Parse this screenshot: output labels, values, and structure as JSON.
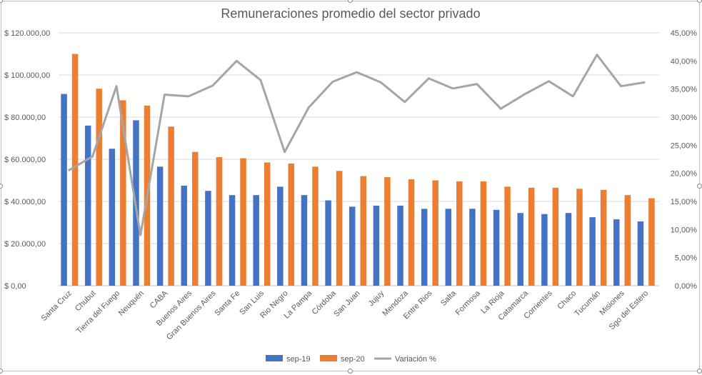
{
  "chart_data": {
    "type": "bar",
    "title": "Remuneraciones promedio del sector privado",
    "categories": [
      "Santa Cruz",
      "Chubut",
      "Tierra del Fuego",
      "Neuquén",
      "CABA",
      "Buenos Aires",
      "Gran Buenos Aires",
      "Santa Fe",
      "San Luis",
      "Rio Negro",
      "La Pampa",
      "Córdoba",
      "San Juan",
      "Jujuy",
      "Mendoza",
      "Entre Rios",
      "Salta",
      "Formosa",
      "La Rioja",
      "Catamarca",
      "Corrientes",
      "Chaco",
      "Tucumán",
      "Misiones",
      "Sgo del Estero"
    ],
    "series": [
      {
        "name": "sep-19",
        "axis": "left",
        "kind": "bar",
        "color": "#4472c4",
        "values": [
          91000,
          76000,
          65000,
          78500,
          56500,
          47500,
          45000,
          43000,
          43000,
          47000,
          43000,
          40500,
          37500,
          38000,
          38000,
          36500,
          36500,
          36500,
          36000,
          34500,
          34000,
          34500,
          32500,
          31500,
          30500
        ]
      },
      {
        "name": "sep-20",
        "axis": "left",
        "kind": "bar",
        "color": "#ed7d31",
        "values": [
          110000,
          93500,
          88000,
          85500,
          75500,
          63500,
          61000,
          60500,
          58500,
          58000,
          56500,
          54500,
          52000,
          51500,
          50500,
          50000,
          49500,
          49500,
          47000,
          46500,
          46500,
          46000,
          45500,
          43000,
          41500
        ]
      },
      {
        "name": "Variación %",
        "axis": "right",
        "kind": "line",
        "color": "#a5a5a5",
        "values": [
          20.5,
          23.0,
          35.5,
          9.0,
          34.0,
          33.7,
          35.6,
          40.0,
          36.6,
          23.8,
          31.7,
          36.3,
          38.0,
          36.2,
          32.7,
          36.9,
          35.1,
          35.9,
          31.5,
          34.1,
          36.4,
          33.7,
          41.1,
          35.5,
          36.2
        ]
      }
    ],
    "y_left": {
      "min": 0,
      "max": 120000,
      "step": 20000,
      "tick_labels": [
        "$ 0,00",
        "$ 20.000,00",
        "$ 40.000,00",
        "$ 60.000,00",
        "$ 80.000,00",
        "$ 100.000,00",
        "$ 120.000,00"
      ]
    },
    "y_right": {
      "min": 0,
      "max": 45,
      "step": 5,
      "tick_labels": [
        "0,00%",
        "5,00%",
        "10,00%",
        "15,00%",
        "20,00%",
        "25,00%",
        "30,00%",
        "35,00%",
        "40,00%",
        "45,00%"
      ]
    },
    "xlabel": "",
    "ylabel": "",
    "legend": {
      "position": "bottom",
      "entries": [
        "sep-19",
        "sep-20",
        "Variación %"
      ]
    },
    "grid": true
  }
}
